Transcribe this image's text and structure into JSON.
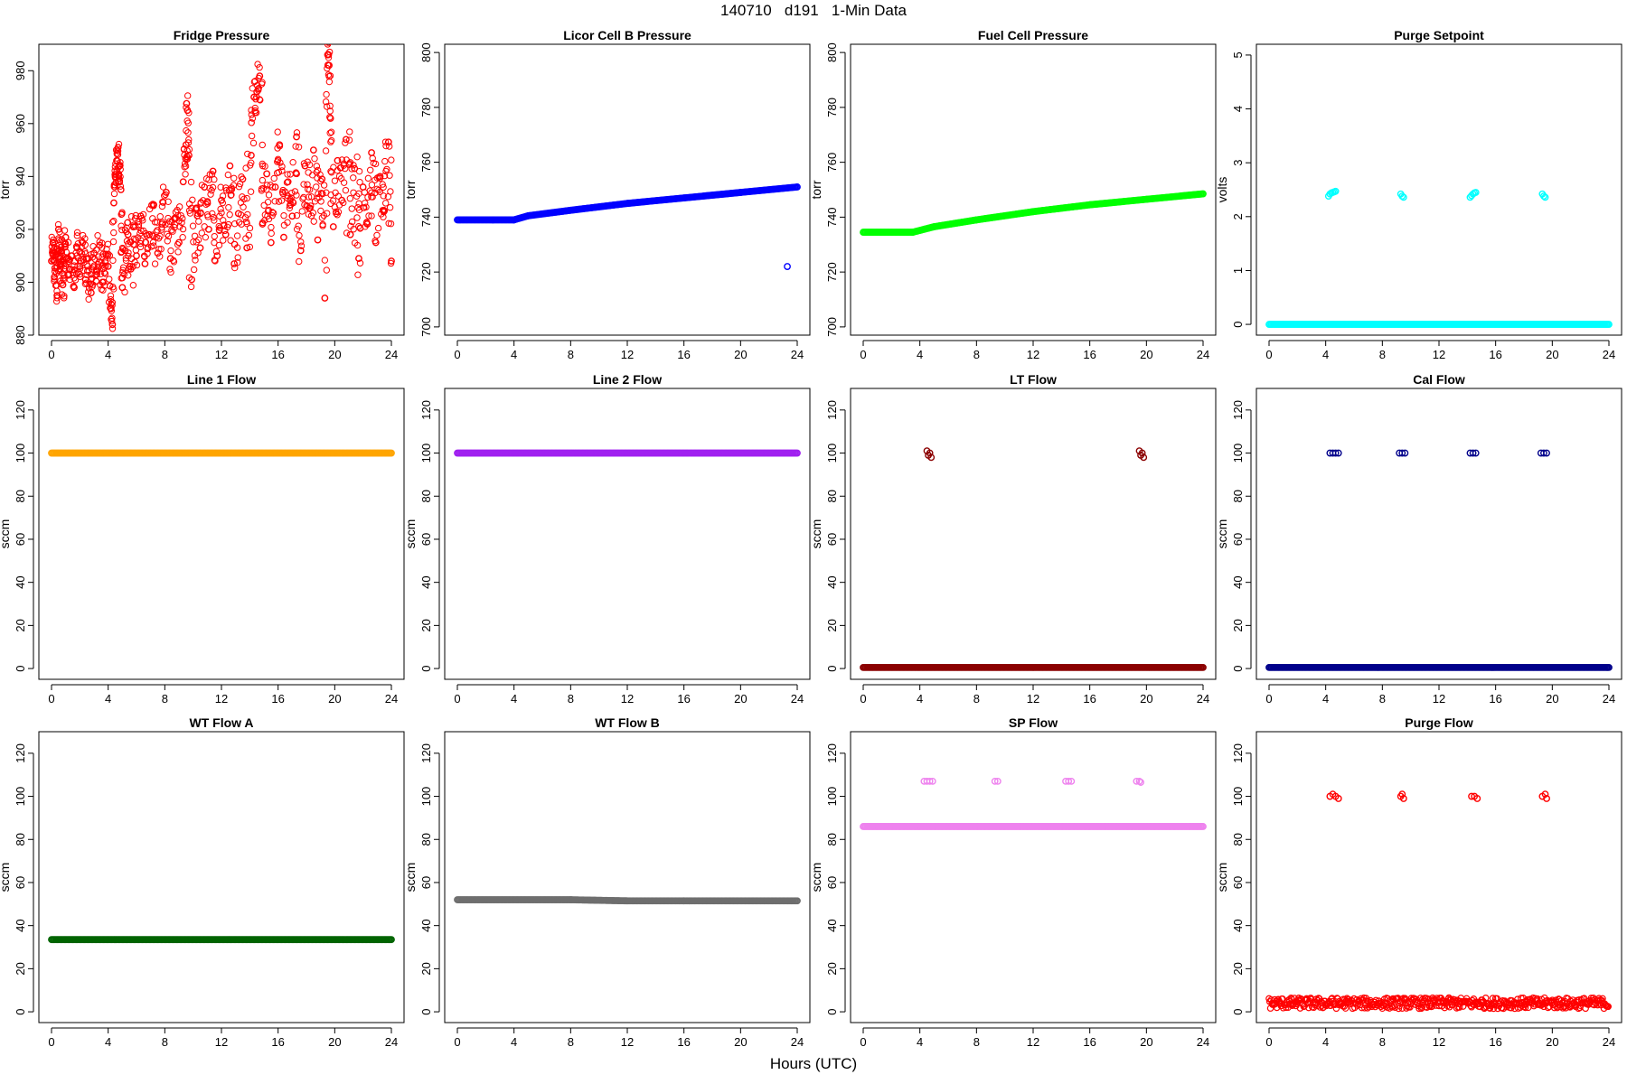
{
  "header": {
    "title": "140710   d191   1-Min Data"
  },
  "footer": {
    "xlabel": "Hours (UTC)"
  },
  "chart_data": [
    {
      "type": "scatter",
      "title": "Fridge Pressure",
      "ylabel": "torr",
      "xlim": [
        0,
        24
      ],
      "ylim": [
        880,
        990
      ],
      "xticks": [
        0,
        4,
        8,
        12,
        16,
        20,
        24
      ],
      "yticks": [
        880,
        900,
        920,
        940,
        960,
        980
      ],
      "color": "#ff0000",
      "points": [
        [
          0.0,
          908
        ],
        [
          0.1,
          915
        ],
        [
          0.2,
          902
        ],
        [
          0.3,
          910
        ],
        [
          0.4,
          895
        ],
        [
          0.5,
          920
        ],
        [
          0.6,
          905
        ],
        [
          0.7,
          912
        ],
        [
          0.8,
          899
        ],
        [
          0.9,
          907
        ],
        [
          1.0,
          917
        ],
        [
          1.2,
          903
        ],
        [
          1.4,
          910
        ],
        [
          1.6,
          898
        ],
        [
          1.8,
          913
        ],
        [
          2.0,
          906
        ],
        [
          2.2,
          915
        ],
        [
          2.4,
          901
        ],
        [
          2.6,
          909
        ],
        [
          2.8,
          896
        ],
        [
          3.0,
          911
        ],
        [
          3.2,
          904
        ],
        [
          3.4,
          914
        ],
        [
          3.6,
          900
        ],
        [
          3.8,
          908
        ],
        [
          4.0,
          906
        ],
        [
          4.2,
          890
        ],
        [
          4.3,
          884
        ],
        [
          4.4,
          930
        ],
        [
          4.5,
          940
        ],
        [
          4.6,
          946
        ],
        [
          4.7,
          951
        ],
        [
          4.8,
          944
        ],
        [
          4.9,
          935
        ],
        [
          5.0,
          898
        ],
        [
          5.2,
          912
        ],
        [
          5.4,
          918
        ],
        [
          5.6,
          905
        ],
        [
          5.8,
          921
        ],
        [
          6.0,
          910
        ],
        [
          6.3,
          925
        ],
        [
          6.6,
          907
        ],
        [
          6.9,
          918
        ],
        [
          7.2,
          929
        ],
        [
          7.5,
          911
        ],
        [
          7.8,
          922
        ],
        [
          8.1,
          934
        ],
        [
          8.4,
          909
        ],
        [
          8.7,
          924
        ],
        [
          9.0,
          915
        ],
        [
          9.3,
          938
        ],
        [
          9.5,
          952
        ],
        [
          9.6,
          965
        ],
        [
          9.7,
          948
        ],
        [
          9.9,
          901
        ],
        [
          10.2,
          928
        ],
        [
          10.5,
          913
        ],
        [
          10.8,
          936
        ],
        [
          11.1,
          920
        ],
        [
          11.4,
          942
        ],
        [
          11.7,
          910
        ],
        [
          12.0,
          931
        ],
        [
          12.3,
          918
        ],
        [
          12.6,
          944
        ],
        [
          12.9,
          907
        ],
        [
          13.2,
          926
        ],
        [
          13.5,
          939
        ],
        [
          13.8,
          913
        ],
        [
          14.1,
          948
        ],
        [
          14.3,
          970
        ],
        [
          14.5,
          972
        ],
        [
          14.7,
          978
        ],
        [
          14.9,
          922
        ],
        [
          15.2,
          941
        ],
        [
          15.5,
          915
        ],
        [
          15.8,
          936
        ],
        [
          16.1,
          952
        ],
        [
          16.4,
          917
        ],
        [
          16.7,
          938
        ],
        [
          17.0,
          925
        ],
        [
          17.3,
          955
        ],
        [
          17.6,
          912
        ],
        [
          17.9,
          944
        ],
        [
          18.2,
          928
        ],
        [
          18.5,
          950
        ],
        [
          18.8,
          916
        ],
        [
          19.1,
          939
        ],
        [
          19.3,
          894
        ],
        [
          19.5,
          986
        ],
        [
          19.6,
          982
        ],
        [
          19.7,
          962
        ],
        [
          19.9,
          921
        ],
        [
          20.2,
          946
        ],
        [
          20.5,
          931
        ],
        [
          20.8,
          954
        ],
        [
          21.1,
          918
        ],
        [
          21.4,
          943
        ],
        [
          21.7,
          909
        ],
        [
          22.0,
          936
        ],
        [
          22.3,
          922
        ],
        [
          22.6,
          949
        ],
        [
          22.9,
          915
        ],
        [
          23.2,
          940
        ],
        [
          23.5,
          927
        ],
        [
          23.8,
          953
        ],
        [
          24.0,
          908
        ]
      ]
    },
    {
      "type": "scatter",
      "title": "Licor Cell B Pressure",
      "ylabel": "torr",
      "xlim": [
        0,
        24
      ],
      "ylim": [
        697,
        803
      ],
      "xticks": [
        0,
        4,
        8,
        12,
        16,
        20,
        24
      ],
      "yticks": [
        700,
        720,
        740,
        760,
        780,
        800
      ],
      "color": "#0000ff",
      "segments": [
        [
          [
            0,
            739
          ],
          [
            2.5,
            739
          ],
          [
            4.0,
            739
          ],
          [
            5.0,
            740.5
          ],
          [
            8.0,
            742.5
          ],
          [
            12.0,
            745
          ],
          [
            16.0,
            747
          ],
          [
            20.0,
            749
          ],
          [
            24.0,
            751
          ]
        ]
      ],
      "points": [
        [
          23.3,
          722
        ]
      ]
    },
    {
      "type": "scatter",
      "title": "Fuel Cell Pressure",
      "ylabel": "torr",
      "xlim": [
        0,
        24
      ],
      "ylim": [
        697,
        803
      ],
      "xticks": [
        0,
        4,
        8,
        12,
        16,
        20,
        24
      ],
      "yticks": [
        700,
        720,
        740,
        760,
        780,
        800
      ],
      "color": "#00ff00",
      "segments": [
        [
          [
            0,
            734.5
          ],
          [
            3.5,
            734.5
          ],
          [
            5.0,
            736.5
          ],
          [
            8.0,
            739
          ],
          [
            12.0,
            742
          ],
          [
            16.0,
            744.5
          ],
          [
            20.0,
            746.5
          ],
          [
            24.0,
            748.5
          ]
        ]
      ],
      "points": []
    },
    {
      "type": "scatter",
      "title": "Purge Setpoint",
      "ylabel": "volts",
      "xlim": [
        0,
        24
      ],
      "ylim": [
        -0.2,
        5.2
      ],
      "xticks": [
        0,
        4,
        8,
        12,
        16,
        20,
        24
      ],
      "yticks": [
        0,
        1,
        2,
        3,
        4,
        5
      ],
      "color": "#00ffff",
      "segments": [
        [
          [
            0,
            0
          ],
          [
            24,
            0
          ]
        ]
      ],
      "points": [
        [
          4.2,
          2.38
        ],
        [
          4.3,
          2.42
        ],
        [
          4.4,
          2.44
        ],
        [
          4.5,
          2.45
        ],
        [
          4.6,
          2.46
        ],
        [
          4.7,
          2.47
        ],
        [
          9.3,
          2.42
        ],
        [
          9.4,
          2.38
        ],
        [
          9.5,
          2.36
        ],
        [
          14.2,
          2.36
        ],
        [
          14.3,
          2.39
        ],
        [
          14.4,
          2.42
        ],
        [
          14.5,
          2.44
        ],
        [
          14.6,
          2.45
        ],
        [
          19.3,
          2.42
        ],
        [
          19.4,
          2.38
        ],
        [
          19.5,
          2.36
        ]
      ]
    },
    {
      "type": "scatter",
      "title": "Line 1 Flow",
      "ylabel": "sccm",
      "xlim": [
        0,
        24
      ],
      "ylim": [
        -5,
        130
      ],
      "xticks": [
        0,
        4,
        8,
        12,
        16,
        20,
        24
      ],
      "yticks": [
        0,
        20,
        40,
        60,
        80,
        100,
        120
      ],
      "color": "#ffa500",
      "segments": [
        [
          [
            0,
            100
          ],
          [
            24,
            100
          ]
        ]
      ],
      "points": []
    },
    {
      "type": "scatter",
      "title": "Line 2 Flow",
      "ylabel": "sccm",
      "xlim": [
        0,
        24
      ],
      "ylim": [
        -5,
        130
      ],
      "xticks": [
        0,
        4,
        8,
        12,
        16,
        20,
        24
      ],
      "yticks": [
        0,
        20,
        40,
        60,
        80,
        100,
        120
      ],
      "color": "#a020f0",
      "segments": [
        [
          [
            0,
            100
          ],
          [
            24,
            100
          ]
        ]
      ],
      "points": []
    },
    {
      "type": "scatter",
      "title": "LT Flow",
      "ylabel": "sccm",
      "xlim": [
        0,
        24
      ],
      "ylim": [
        -5,
        130
      ],
      "xticks": [
        0,
        4,
        8,
        12,
        16,
        20,
        24
      ],
      "yticks": [
        0,
        20,
        40,
        60,
        80,
        100,
        120
      ],
      "color": "#8b0000",
      "segments": [
        [
          [
            0,
            0.5
          ],
          [
            24,
            0.5
          ]
        ]
      ],
      "points": [
        [
          4.5,
          101
        ],
        [
          4.6,
          99
        ],
        [
          4.7,
          100
        ],
        [
          4.8,
          98
        ],
        [
          19.5,
          101
        ],
        [
          19.6,
          99
        ],
        [
          19.7,
          100
        ],
        [
          19.8,
          98
        ]
      ]
    },
    {
      "type": "scatter",
      "title": "Cal Flow",
      "ylabel": "sccm",
      "xlim": [
        0,
        24
      ],
      "ylim": [
        -5,
        130
      ],
      "xticks": [
        0,
        4,
        8,
        12,
        16,
        20,
        24
      ],
      "yticks": [
        0,
        20,
        40,
        60,
        80,
        100,
        120
      ],
      "color": "#00008b",
      "segments": [
        [
          [
            0,
            0.5
          ],
          [
            24,
            0.5
          ]
        ]
      ],
      "points": [
        [
          4.3,
          100
        ],
        [
          4.5,
          100
        ],
        [
          4.7,
          100
        ],
        [
          4.9,
          100
        ],
        [
          9.2,
          100
        ],
        [
          9.4,
          100
        ],
        [
          9.6,
          100
        ],
        [
          14.2,
          100
        ],
        [
          14.4,
          100
        ],
        [
          14.6,
          100
        ],
        [
          19.2,
          100
        ],
        [
          19.4,
          100
        ],
        [
          19.6,
          100
        ]
      ]
    },
    {
      "type": "scatter",
      "title": "WT Flow A",
      "ylabel": "sccm",
      "xlim": [
        0,
        24
      ],
      "ylim": [
        -5,
        130
      ],
      "xticks": [
        0,
        4,
        8,
        12,
        16,
        20,
        24
      ],
      "yticks": [
        0,
        20,
        40,
        60,
        80,
        100,
        120
      ],
      "color": "#006400",
      "segments": [
        [
          [
            0,
            33.5
          ],
          [
            24,
            33.5
          ]
        ]
      ],
      "points": []
    },
    {
      "type": "scatter",
      "title": "WT Flow B",
      "ylabel": "sccm",
      "xlim": [
        0,
        24
      ],
      "ylim": [
        -5,
        130
      ],
      "xticks": [
        0,
        4,
        8,
        12,
        16,
        20,
        24
      ],
      "yticks": [
        0,
        20,
        40,
        60,
        80,
        100,
        120
      ],
      "color": "#6e6e6e",
      "segments": [
        [
          [
            0,
            52
          ],
          [
            8,
            52
          ],
          [
            12,
            51.5
          ],
          [
            16,
            51.5
          ],
          [
            24,
            51.5
          ]
        ]
      ],
      "points": []
    },
    {
      "type": "scatter",
      "title": "SP Flow",
      "ylabel": "sccm",
      "xlim": [
        0,
        24
      ],
      "ylim": [
        -5,
        130
      ],
      "xticks": [
        0,
        4,
        8,
        12,
        16,
        20,
        24
      ],
      "yticks": [
        0,
        20,
        40,
        60,
        80,
        100,
        120
      ],
      "color": "#ee82ee",
      "segments": [
        [
          [
            0,
            86
          ],
          [
            24,
            86
          ]
        ]
      ],
      "points": [
        [
          4.3,
          107
        ],
        [
          4.5,
          107
        ],
        [
          4.7,
          107
        ],
        [
          4.9,
          107
        ],
        [
          9.3,
          107
        ],
        [
          9.5,
          107
        ],
        [
          14.3,
          107
        ],
        [
          14.5,
          107
        ],
        [
          14.7,
          107
        ],
        [
          19.3,
          107
        ],
        [
          19.5,
          107
        ],
        [
          19.6,
          106.5
        ]
      ]
    },
    {
      "type": "scatter",
      "title": "Purge Flow",
      "ylabel": "sccm",
      "xlim": [
        0,
        24
      ],
      "ylim": [
        -5,
        130
      ],
      "xticks": [
        0,
        4,
        8,
        12,
        16,
        20,
        24
      ],
      "yticks": [
        0,
        20,
        40,
        60,
        80,
        100,
        120
      ],
      "color": "#ff0000",
      "segments": [],
      "points": [
        [
          4.3,
          100
        ],
        [
          4.5,
          101
        ],
        [
          4.7,
          100
        ],
        [
          4.9,
          99
        ],
        [
          9.3,
          100
        ],
        [
          9.4,
          101
        ],
        [
          9.5,
          99
        ],
        [
          14.3,
          100
        ],
        [
          14.5,
          100
        ],
        [
          14.7,
          99
        ],
        [
          19.3,
          100
        ],
        [
          19.5,
          101
        ],
        [
          19.6,
          99
        ]
      ],
      "noise_band": {
        "from": 0,
        "to": 24,
        "center": 4,
        "amplitude": 2.5
      }
    }
  ]
}
